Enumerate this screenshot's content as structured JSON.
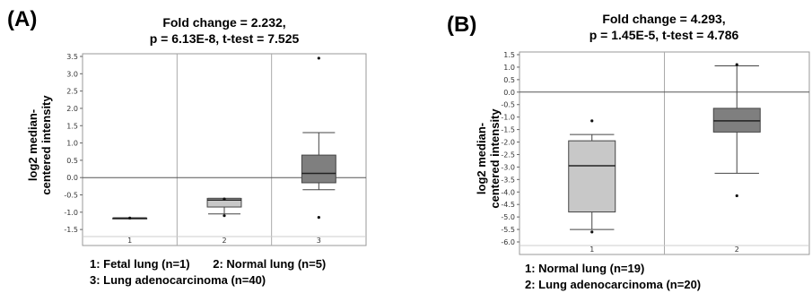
{
  "chart_data": [
    {
      "type": "box",
      "panel_label": "(A)",
      "title_line1": "Fold change = 2.232,",
      "title_line2": "p = 6.13E-8, t-test = 7.525",
      "ylabel_line1": "log2 median-",
      "ylabel_line2": "centered intensity",
      "ylim": [
        -1.6,
        3.5
      ],
      "yticks": [
        "3.5",
        "3.0",
        "2.5",
        "2.0",
        "1.5",
        "1.0",
        "0.5",
        "0.0",
        "-0.5",
        "-1.0",
        "-1.5"
      ],
      "ytick_values": [
        3.5,
        3.0,
        2.5,
        2.0,
        1.5,
        1.0,
        0.5,
        0.0,
        -0.5,
        -1.0,
        -1.5
      ],
      "categories": [
        "1",
        "2",
        "3"
      ],
      "boxes": [
        {
          "whisker_low": -1.17,
          "q1": -1.17,
          "median": -1.17,
          "q3": -1.17,
          "whisker_high": -1.17,
          "outliers": [
            -1.17
          ],
          "color": "#7f7f7f"
        },
        {
          "whisker_low": -1.05,
          "q1": -0.85,
          "median": -0.65,
          "q3": -0.6,
          "whisker_high": -0.6,
          "outliers": [
            -0.62,
            -1.1
          ],
          "color": "#c8c8c8"
        },
        {
          "whisker_low": -0.35,
          "q1": -0.15,
          "median": 0.12,
          "q3": 0.65,
          "whisker_high": 1.3,
          "outliers": [
            3.45,
            -1.15
          ],
          "color": "#7f7f7f"
        }
      ],
      "legend_line1_a": "1: Fetal lung (n=1)",
      "legend_line1_b": "2: Normal lung (n=5)",
      "legend_line2": "3: Lung adenocarcinoma (n=40)"
    },
    {
      "type": "box",
      "panel_label": "(B)",
      "title_line1": "Fold change = 4.293,",
      "title_line2": "p = 1.45E-5, t-test = 4.786",
      "ylabel_line1": "log2 median-",
      "ylabel_line2": "centered intensity",
      "ylim": [
        -6.0,
        1.5
      ],
      "yticks": [
        "1.5",
        "1.0",
        "0.5",
        "0.0",
        "-0.5",
        "-1.0",
        "-1.5",
        "-2.0",
        "-2.5",
        "-3.0",
        "-3.5",
        "-4.0",
        "-4.5",
        "-5.0",
        "-5.5",
        "-6.0"
      ],
      "ytick_values": [
        1.5,
        1.0,
        0.5,
        0.0,
        -0.5,
        -1.0,
        -1.5,
        -2.0,
        -2.5,
        -3.0,
        -3.5,
        -4.0,
        -4.5,
        -5.0,
        -5.5,
        -6.0
      ],
      "categories": [
        "1",
        "2"
      ],
      "boxes": [
        {
          "whisker_low": -5.5,
          "q1": -4.8,
          "median": -2.95,
          "q3": -1.95,
          "whisker_high": -1.7,
          "outliers": [
            -1.15,
            -5.6
          ],
          "color": "#c8c8c8"
        },
        {
          "whisker_low": -3.25,
          "q1": -1.6,
          "median": -1.15,
          "q3": -0.65,
          "whisker_high": 1.05,
          "outliers": [
            1.1,
            -4.15
          ],
          "color": "#7f7f7f"
        }
      ],
      "legend_line1": "1: Normal lung (n=19)",
      "legend_line2": "2: Lung adenocarcinoma (n=20)"
    }
  ]
}
